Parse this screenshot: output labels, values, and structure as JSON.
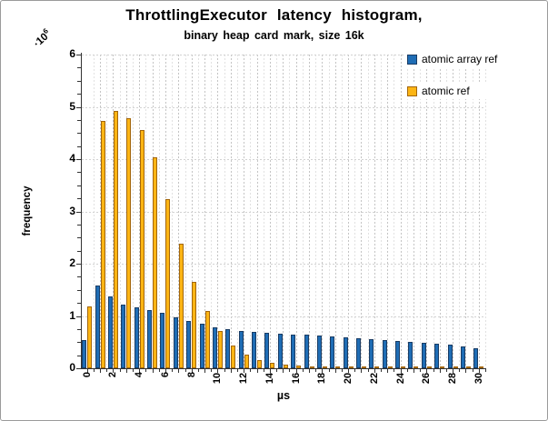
{
  "chart_data": {
    "type": "bar",
    "title": "ThrottlingExecutor latency histogram,",
    "subtitle": "binary heap card mark, size 16k",
    "xlabel": "µs",
    "ylabel": "frequency",
    "y_mult_base": "·10",
    "y_mult_exp": "6",
    "ylim": [
      0,
      6
    ],
    "xlim_ticks": [
      0,
      30
    ],
    "x_tick_label_step": 2,
    "x_minor_step": 0.5,
    "y_major_step": 1,
    "y_minor_step": 0.25,
    "grid": "dashed, vertical every 0.5 µs, horizontal every 1 unit",
    "legend_position": "top-right-inside",
    "x": [
      0,
      1,
      2,
      3,
      4,
      5,
      6,
      7,
      8,
      9,
      10,
      11,
      12,
      13,
      14,
      15,
      16,
      17,
      18,
      19,
      20,
      21,
      22,
      23,
      24,
      25,
      26,
      27,
      28,
      29,
      30
    ],
    "series": [
      {
        "name": "atomic array ref",
        "color": "#1F6DB5",
        "border": "#1A3C64",
        "values": [
          0.54,
          1.59,
          1.37,
          1.22,
          1.16,
          1.12,
          1.06,
          0.97,
          0.9,
          0.85,
          0.79,
          0.74,
          0.71,
          0.69,
          0.67,
          0.66,
          0.65,
          0.64,
          0.62,
          0.61,
          0.59,
          0.57,
          0.56,
          0.54,
          0.53,
          0.51,
          0.49,
          0.47,
          0.45,
          0.42,
          0.39
        ]
      },
      {
        "name": "atomic ref",
        "color": "#FCB514",
        "border": "#A2660C",
        "values": [
          1.19,
          4.73,
          4.93,
          4.79,
          4.55,
          4.03,
          3.23,
          2.38,
          1.65,
          1.09,
          0.71,
          0.43,
          0.26,
          0.16,
          0.1,
          0.07,
          0.05,
          0.04,
          0.03,
          0.03,
          0.03,
          0.02,
          0.02,
          0.02,
          0.02,
          0.02,
          0.02,
          0.01,
          0.01,
          0.01,
          0.01
        ]
      }
    ],
    "y_tick_labels": [
      "0",
      "1",
      "2",
      "3",
      "4",
      "5",
      "6"
    ],
    "x_tick_labels": [
      "0",
      "2",
      "4",
      "6",
      "8",
      "10",
      "12",
      "14",
      "16",
      "18",
      "20",
      "22",
      "24",
      "26",
      "28",
      "30"
    ]
  }
}
